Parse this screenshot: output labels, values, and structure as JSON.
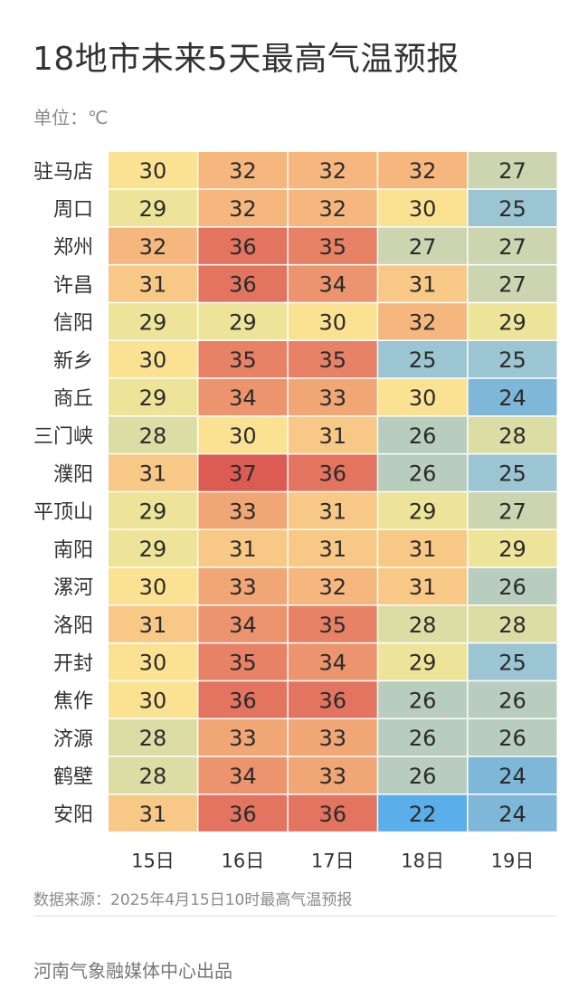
{
  "header": {
    "title": "18地市未来5天最高气温预报",
    "unit": "单位：℃"
  },
  "footer": {
    "source": "数据来源：2025年4月15日10时最高气温预报",
    "credit": "河南气象融媒体中心出品"
  },
  "chart_data": {
    "type": "heatmap",
    "title": "18地市未来5天最高气温预报",
    "columns": [
      "15日",
      "16日",
      "17日",
      "18日",
      "19日"
    ],
    "rows": [
      "驻马店",
      "周口",
      "郑州",
      "许昌",
      "信阳",
      "新乡",
      "商丘",
      "三门峡",
      "濮阳",
      "平顶山",
      "南阳",
      "漯河",
      "洛阳",
      "开封",
      "焦作",
      "济源",
      "鹤壁",
      "安阳"
    ],
    "values": [
      [
        30,
        32,
        32,
        32,
        27
      ],
      [
        29,
        32,
        32,
        30,
        25
      ],
      [
        32,
        36,
        35,
        27,
        27
      ],
      [
        31,
        36,
        34,
        31,
        27
      ],
      [
        29,
        29,
        30,
        32,
        29
      ],
      [
        30,
        35,
        35,
        25,
        25
      ],
      [
        29,
        34,
        33,
        30,
        24
      ],
      [
        28,
        30,
        31,
        26,
        28
      ],
      [
        31,
        37,
        36,
        26,
        25
      ],
      [
        29,
        33,
        31,
        29,
        27
      ],
      [
        29,
        31,
        31,
        31,
        29
      ],
      [
        30,
        33,
        32,
        31,
        26
      ],
      [
        31,
        34,
        35,
        28,
        28
      ],
      [
        30,
        35,
        34,
        29,
        25
      ],
      [
        30,
        36,
        36,
        26,
        26
      ],
      [
        28,
        33,
        33,
        26,
        26
      ],
      [
        28,
        34,
        33,
        26,
        24
      ],
      [
        31,
        36,
        36,
        22,
        24
      ]
    ],
    "color_scale": {
      "22": "#5aaeea",
      "24": "#7fb7d8",
      "25": "#9cc5d3",
      "26": "#b8cdbd",
      "27": "#cdd4b0",
      "28": "#dcdca5",
      "29": "#ede49a",
      "30": "#fbe293",
      "31": "#f8c886",
      "32": "#f5b77d",
      "33": "#f1a676",
      "34": "#ec946d",
      "35": "#e88266",
      "36": "#e27460",
      "37": "#dc5b52"
    }
  }
}
